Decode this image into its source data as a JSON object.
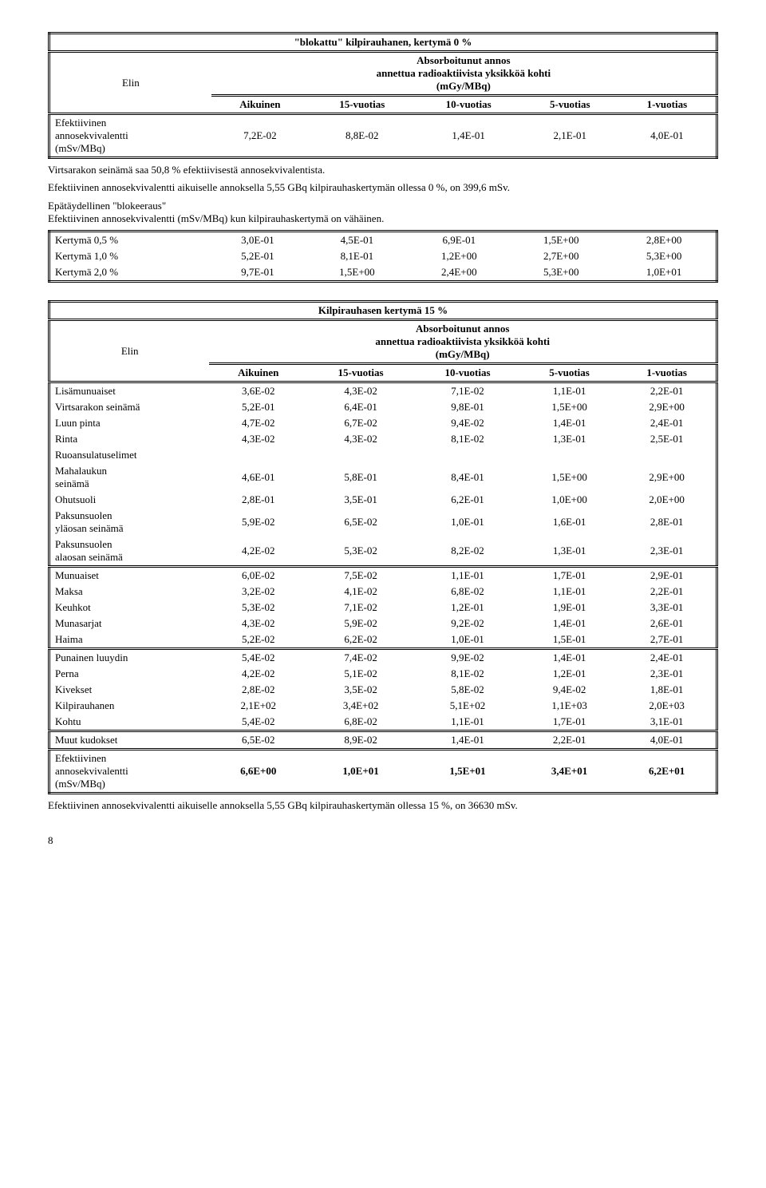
{
  "table1": {
    "title": "\"blokattu\" kilpirauhanen, kertymä 0 %",
    "elin": "Elin",
    "abs_title": "Absorboitunut annos",
    "abs_sub": "annettua radioaktiivista yksikköä kohti",
    "abs_unit": "(mGy/MBq)",
    "cols": [
      "Aikuinen",
      "15-vuotias",
      "10-vuotias",
      "5-vuotias",
      "1-vuotias"
    ],
    "row": {
      "l1": "Efektiivinen",
      "l2": "annosekvivalentti",
      "l3": "(mSv/MBq)",
      "v": [
        "7,2E-02",
        "8,8E-02",
        "1,4E-01",
        "2,1E-01",
        "4,0E-01"
      ]
    }
  },
  "para1": "Virtsarakon seinämä saa 50,8 % efektiivisestä annosekvivalentista.",
  "para2": "Efektiivinen annosekvivalentti aikuiselle annoksella 5,55 GBq kilpirauhaskertymän ollessa 0 %, on 399,6 mSv.",
  "para3a": "Epätäydellinen \"blokeeraus\"",
  "para3b": "Efektiivinen annosekvivalentti (mSv/MBq) kun kilpirauhaskertymä on vähäinen.",
  "table2": {
    "rows": [
      {
        "l": "Kertymä 0,5 %",
        "v": [
          "3,0E-01",
          "4,5E-01",
          "6,9E-01",
          "1,5E+00",
          "2,8E+00"
        ]
      },
      {
        "l": "Kertymä 1,0 %",
        "v": [
          "5,2E-01",
          "8,1E-01",
          "1,2E+00",
          "2,7E+00",
          "5,3E+00"
        ]
      },
      {
        "l": "Kertymä 2,0 %",
        "v": [
          "9,7E-01",
          "1,5E+00",
          "2,4E+00",
          "5,3E+00",
          "1,0E+01"
        ]
      }
    ]
  },
  "table3": {
    "title": "Kilpirauhasen kertymä 15 %",
    "elin": "Elin",
    "abs_title": "Absorboitunut annos",
    "abs_sub": "annettua radioaktiivista yksikköä kohti",
    "abs_unit": "(mGy/MBq)",
    "cols": [
      "Aikuinen",
      "15-vuotias",
      "10-vuotias",
      "5-vuotias",
      "1-vuotias"
    ],
    "sec1": [
      {
        "l": "Lisämunuaiset",
        "v": [
          "3,6E-02",
          "4,3E-02",
          "7,1E-02",
          "1,1E-01",
          "2,2E-01"
        ]
      },
      {
        "l": "Virtsarakon seinämä",
        "v": [
          "5,2E-01",
          "6,4E-01",
          "9,8E-01",
          "1,5E+00",
          "2,9E+00"
        ]
      },
      {
        "l": "Luun pinta",
        "v": [
          "4,7E-02",
          "6,7E-02",
          "9,4E-02",
          "1,4E-01",
          "2,4E-01"
        ]
      },
      {
        "l": "Rinta",
        "v": [
          "4,3E-02",
          "4,3E-02",
          "8,1E-02",
          "1,3E-01",
          "2,5E-01"
        ]
      }
    ],
    "ruoan": "Ruoansulatuselimet",
    "sec1b": [
      {
        "l": "Mahalaukun",
        "l2": "seinämä",
        "v": [
          "4,6E-01",
          "5,8E-01",
          "8,4E-01",
          "1,5E+00",
          "2,9E+00"
        ]
      },
      {
        "l": "Ohutsuoli",
        "v": [
          "2,8E-01",
          "3,5E-01",
          "6,2E-01",
          "1,0E+00",
          "2,0E+00"
        ]
      },
      {
        "l": "Paksunsuolen",
        "l2": "yläosan seinämä",
        "v": [
          "5,9E-02",
          "6,5E-02",
          "1,0E-01",
          "1,6E-01",
          "2,8E-01"
        ]
      },
      {
        "l": "Paksunsuolen",
        "l2": "alaosan seinämä",
        "v": [
          "4,2E-02",
          "5,3E-02",
          "8,2E-02",
          "1,3E-01",
          "2,3E-01"
        ]
      }
    ],
    "sec2": [
      {
        "l": "Munuaiset",
        "v": [
          "6,0E-02",
          "7,5E-02",
          "1,1E-01",
          "1,7E-01",
          "2,9E-01"
        ]
      },
      {
        "l": "Maksa",
        "v": [
          "3,2E-02",
          "4,1E-02",
          "6,8E-02",
          "1,1E-01",
          "2,2E-01"
        ]
      },
      {
        "l": "Keuhkot",
        "v": [
          "5,3E-02",
          "7,1E-02",
          "1,2E-01",
          "1,9E-01",
          "3,3E-01"
        ]
      },
      {
        "l": "Munasarjat",
        "v": [
          "4,3E-02",
          "5,9E-02",
          "9,2E-02",
          "1,4E-01",
          "2,6E-01"
        ]
      },
      {
        "l": "Haima",
        "v": [
          "5,2E-02",
          "6,2E-02",
          "1,0E-01",
          "1,5E-01",
          "2,7E-01"
        ]
      }
    ],
    "sec3": [
      {
        "l": "Punainen luuydin",
        "v": [
          "5,4E-02",
          "7,4E-02",
          "9,9E-02",
          "1,4E-01",
          "2,4E-01"
        ]
      },
      {
        "l": "Perna",
        "v": [
          "4,2E-02",
          "5,1E-02",
          "8,1E-02",
          "1,2E-01",
          "2,3E-01"
        ]
      },
      {
        "l": "Kivekset",
        "v": [
          "2,8E-02",
          "3,5E-02",
          "5,8E-02",
          "9,4E-02",
          "1,8E-01"
        ]
      },
      {
        "l": "Kilpirauhanen",
        "v": [
          "2,1E+02",
          "3,4E+02",
          "5,1E+02",
          "1,1E+03",
          "2,0E+03"
        ]
      },
      {
        "l": "Kohtu",
        "v": [
          "5,4E-02",
          "6,8E-02",
          "1,1E-01",
          "1,7E-01",
          "3,1E-01"
        ]
      }
    ],
    "sec4": [
      {
        "l": "Muut kudokset",
        "v": [
          "6,5E-02",
          "8,9E-02",
          "1,4E-01",
          "2,2E-01",
          "4,0E-01"
        ]
      }
    ],
    "eff": {
      "l1": "Efektiivinen",
      "l2": "annosekvivalentti",
      "l3": "(mSv/MBq)",
      "v": [
        "6,6E+00",
        "1,0E+01",
        "1,5E+01",
        "3,4E+01",
        "6,2E+01"
      ]
    }
  },
  "para4": "Efektiivinen annosekvivalentti aikuiselle annoksella 5,55 GBq kilpirauhaskertymän ollessa 15 %, on 36630 mSv.",
  "pagenum": "8"
}
